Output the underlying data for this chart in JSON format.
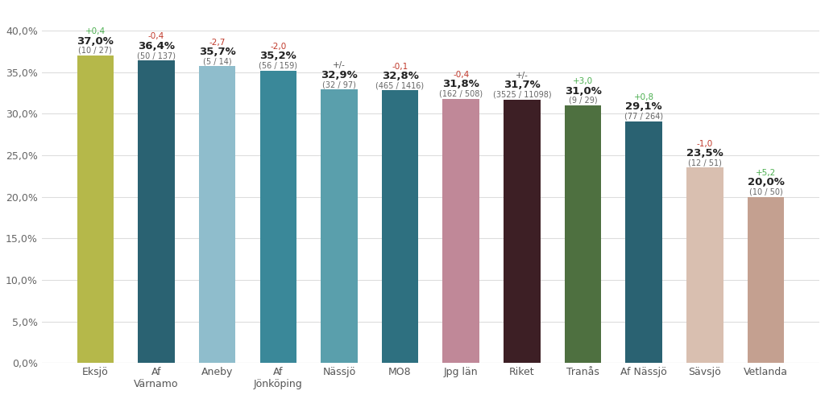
{
  "categories": [
    "Eksjö",
    "Af\nVärnamo",
    "Aneby",
    "Af\nJönköping",
    "Nässjö",
    "MO8",
    "Jpg län",
    "Riket",
    "Tranås",
    "Af Nässjö",
    "Sävsjö",
    "Vetlanda"
  ],
  "values": [
    37.0,
    36.4,
    35.7,
    35.2,
    32.9,
    32.8,
    31.8,
    31.7,
    31.0,
    29.1,
    23.5,
    20.0
  ],
  "bar_colors": [
    "#b5b84a",
    "#2a6272",
    "#8fbdcc",
    "#3a8899",
    "#5a9fac",
    "#2e7080",
    "#c08898",
    "#3d1f25",
    "#4e7040",
    "#2a6272",
    "#d9bfb0",
    "#c4a090"
  ],
  "delta_labels": [
    "+0,4",
    "-0,4",
    "-2,7",
    "-2,0",
    "+/-",
    "-0,1",
    "-0,4",
    "+/-",
    "+3,0",
    "+0,8",
    "-1,0",
    "+5,2"
  ],
  "delta_colors": [
    "#4caf50",
    "#c0392b",
    "#c0392b",
    "#c0392b",
    "#555555",
    "#c0392b",
    "#c0392b",
    "#555555",
    "#4caf50",
    "#4caf50",
    "#c0392b",
    "#4caf50"
  ],
  "pct_labels": [
    "37,0%",
    "36,4%",
    "35,7%",
    "35,2%",
    "32,9%",
    "32,8%",
    "31,8%",
    "31,7%",
    "31,0%",
    "29,1%",
    "23,5%",
    "20,0%"
  ],
  "fraction_labels": [
    "(10 / 27)",
    "(50 / 137)",
    "(5 / 14)",
    "(56 / 159)",
    "(32 / 97)",
    "(465 / 1416)",
    "(162 / 508)",
    "(3525 / 11098)",
    "(9 / 29)",
    "(77 / 264)",
    "(12 / 51)",
    "(10 / 50)"
  ],
  "ytick_labels": [
    "0,0%",
    "5,0%",
    "10,0%",
    "15,0%",
    "20,0%",
    "25,0%",
    "30,0%",
    "35,0%",
    "40,0%"
  ],
  "background_color": "#ffffff",
  "bar_width": 0.6
}
